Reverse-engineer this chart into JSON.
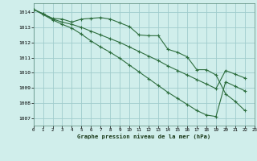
{
  "title": "Graphe pression niveau de la mer (hPa)",
  "bg_color": "#d0eeeb",
  "grid_color": "#a0cccc",
  "line_color": "#2d6e3e",
  "xlim": [
    0,
    23
  ],
  "ylim": [
    1006.5,
    1014.6
  ],
  "yticks": [
    1007,
    1008,
    1009,
    1010,
    1011,
    1012,
    1013,
    1014
  ],
  "xticks": [
    0,
    1,
    2,
    3,
    4,
    5,
    6,
    7,
    8,
    9,
    10,
    11,
    12,
    13,
    14,
    15,
    16,
    17,
    18,
    19,
    20,
    21,
    22,
    23
  ],
  "xlabels": [
    "0",
    "1",
    "2",
    "3",
    "4",
    "5",
    "6",
    "7",
    "8",
    "9",
    "10",
    "11",
    "12",
    "13",
    "14",
    "15",
    "16",
    "17",
    "18",
    "19",
    "20",
    "21",
    "22",
    "23"
  ],
  "hours": [
    0,
    1,
    2,
    3,
    4,
    5,
    6,
    7,
    8,
    9,
    10,
    11,
    12,
    13,
    14,
    15,
    16,
    17,
    18,
    19,
    20,
    21,
    22
  ],
  "s1": [
    1014.2,
    1013.9,
    1013.6,
    1013.55,
    1013.35,
    1013.55,
    1013.6,
    1013.65,
    1013.55,
    1013.3,
    1013.05,
    1012.5,
    1012.45,
    1012.45,
    1011.55,
    1011.35,
    1011.05,
    1010.2,
    1010.2,
    1009.85,
    1008.6,
    1008.1,
    1007.5
  ],
  "s2": [
    1014.2,
    1013.9,
    1013.55,
    1013.35,
    1013.2,
    1013.0,
    1012.75,
    1012.5,
    1012.25,
    1012.0,
    1011.7,
    1011.4,
    1011.1,
    1010.8,
    1010.45,
    1010.15,
    1009.85,
    1009.55,
    1009.25,
    1008.95,
    1010.15,
    1009.9,
    1009.65
  ],
  "s3": [
    1014.2,
    1013.85,
    1013.5,
    1013.2,
    1012.95,
    1012.55,
    1012.1,
    1011.7,
    1011.35,
    1010.95,
    1010.5,
    1010.05,
    1009.6,
    1009.15,
    1008.7,
    1008.3,
    1007.9,
    1007.5,
    1007.2,
    1007.1,
    1009.4,
    1009.1,
    1008.8
  ]
}
